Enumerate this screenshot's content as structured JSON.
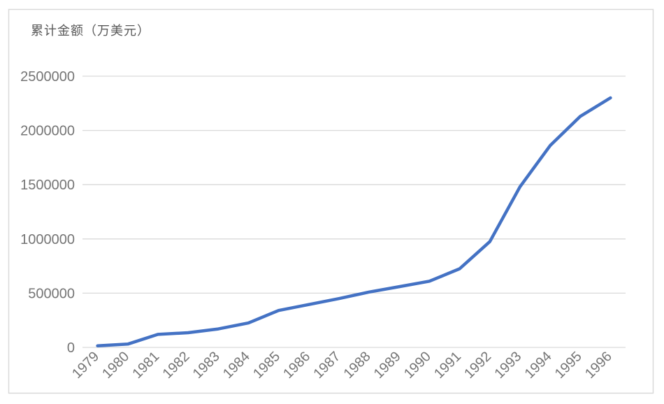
{
  "chart_data": {
    "type": "line",
    "title": "累计金额（万美元）",
    "xlabel": "",
    "ylabel": "累计金额（万美元）",
    "categories": [
      "1979",
      "1980",
      "1981",
      "1982",
      "1983",
      "1984",
      "1985",
      "1986",
      "1987",
      "1988",
      "1989",
      "1990",
      "1991",
      "1992",
      "1993",
      "1994",
      "1995",
      "1996"
    ],
    "values": [
      15000,
      30000,
      120000,
      135000,
      170000,
      225000,
      340000,
      395000,
      450000,
      510000,
      560000,
      610000,
      725000,
      975000,
      1480000,
      1860000,
      2130000,
      2300000
    ],
    "ylim": [
      0,
      2500000
    ],
    "yticks": [
      0,
      500000,
      1000000,
      1500000,
      2000000,
      2500000
    ],
    "grid": "horizontal",
    "legend": "none",
    "x_tick_rotation_deg": 45,
    "colors": {
      "line": "#4472C4",
      "gridline": "#D9D9D9",
      "border": "#D9D9D9",
      "axis_label": "#757575",
      "title": "#595959",
      "background": "#FFFFFF"
    }
  }
}
